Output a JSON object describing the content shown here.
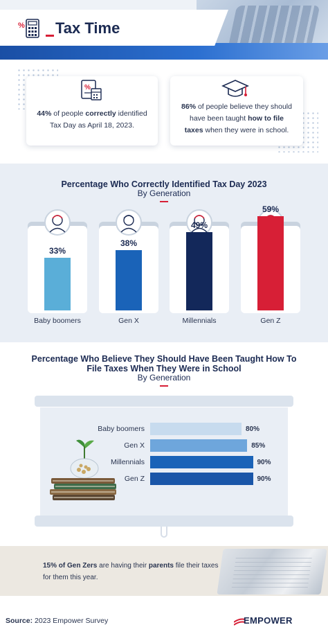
{
  "header": {
    "title": "Tax Time",
    "icon": "calculator-percent-icon"
  },
  "stats": [
    {
      "icon": "tax-document-icon",
      "highlight": "44%",
      "pre": " of people ",
      "bold": "correctly",
      "post": " identified",
      "line2": "Tax Day as April 18, 2023."
    },
    {
      "icon": "graduation-cap-icon",
      "highlight": "86%",
      "pre": " of people believe they should",
      "line2a": "have been taught ",
      "bold": "how to file",
      "line3": "taxes",
      "post": " when they were in school."
    }
  ],
  "chart_data": [
    {
      "type": "bar",
      "title": "Percentage Who Correctly Identified Tax Day 2023",
      "subtitle": "By Generation",
      "categories": [
        "Baby boomers",
        "Gen X",
        "Millennials",
        "Gen Z"
      ],
      "values": [
        33,
        38,
        49,
        59
      ],
      "value_labels": [
        "33%",
        "38%",
        "49%",
        "59%"
      ],
      "colors": [
        "#5aaed8",
        "#1a63b8",
        "#13285a",
        "#d71f36"
      ],
      "ylim": [
        0,
        100
      ]
    },
    {
      "type": "bar",
      "orientation": "horizontal",
      "title_line1": "Percentage Who Believe They Should Have Been Taught How To",
      "title_line2": "File Taxes When They Were in School",
      "subtitle": "By Generation",
      "categories": [
        "Baby boomers",
        "Gen X",
        "Millennials",
        "Gen Z"
      ],
      "values": [
        80,
        85,
        90,
        90
      ],
      "value_labels": [
        "80%",
        "85%",
        "90%",
        "90%"
      ],
      "colors": [
        "#c7dbee",
        "#6ea6dc",
        "#1a63b8",
        "#1a56a8"
      ],
      "xlim": [
        0,
        100
      ]
    }
  ],
  "callout": {
    "bold": "15% of Gen Zers",
    "mid": " are having their ",
    "bold2": "parents",
    "post": " file their taxes",
    "line2": "for them this year."
  },
  "footer": {
    "source_label": "Source:",
    "source_text": " 2023 Empower Survey",
    "brand": "EMPOWER"
  }
}
